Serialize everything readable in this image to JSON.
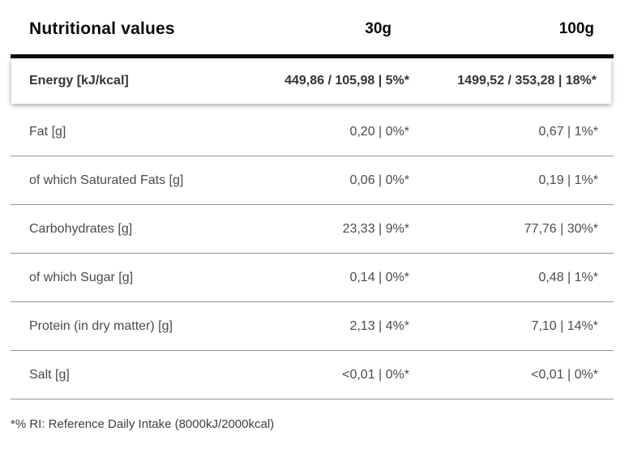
{
  "header": {
    "title": "Nutritional values",
    "serving_small": "30g",
    "serving_large": "100g"
  },
  "energy_row": {
    "label": "Energy [kJ/kcal]",
    "per_30g": "449,86 / 105,98 | 5%*",
    "per_100g": "1499,52 / 353,28 | 18%*"
  },
  "rows": [
    {
      "label": "Fat [g]",
      "per_30g": "0,20 | 0%*",
      "per_100g": "0,67 | 1%*"
    },
    {
      "label": "of which Saturated Fats [g]",
      "per_30g": "0,06 | 0%*",
      "per_100g": "0,19 | 1%*"
    },
    {
      "label": "Carbohydrates [g]",
      "per_30g": "23,33 | 9%*",
      "per_100g": "77,76 | 30%*"
    },
    {
      "label": "of which Sugar [g]",
      "per_30g": "0,14 | 0%*",
      "per_100g": "0,48 | 1%*"
    },
    {
      "label": "Protein (in dry matter) [g]",
      "per_30g": "2,13 | 4%*",
      "per_100g": "7,10 | 14%*"
    },
    {
      "label": "Salt [g]",
      "per_30g": "<0,01 | 0%*",
      "per_100g": "<0,01 | 0%*"
    }
  ],
  "footnote": "*% RI: Reference Daily Intake (8000kJ/2000kcal)",
  "colors": {
    "rule": "#0d0d0d",
    "separator": "#94949a",
    "text_primary": "#0b0b0e",
    "text_secondary": "#4a4a53"
  }
}
